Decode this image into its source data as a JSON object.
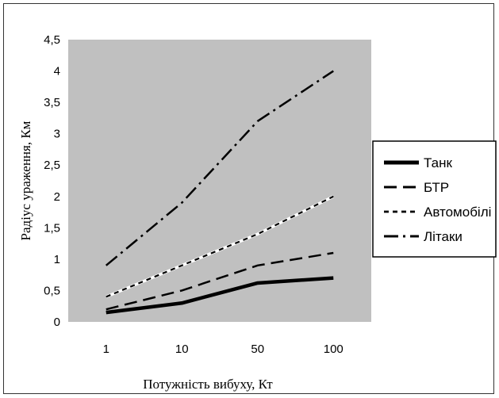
{
  "chart_data": {
    "type": "line",
    "categories": [
      "1",
      "10",
      "50",
      "100"
    ],
    "xlabel": "Потужність вибуху, Кт",
    "ylabel": "Радіус ураження, Км",
    "ylim": [
      0,
      4.5
    ],
    "y_ticks": [
      "0",
      "0,5",
      "1",
      "1,5",
      "2",
      "2,5",
      "3",
      "3,5",
      "4",
      "4,5"
    ],
    "grid": false,
    "plot_background": "#c0c0c0",
    "legend_position": "right",
    "series": [
      {
        "name": "Танк",
        "values": [
          0.15,
          0.3,
          0.62,
          0.7
        ],
        "style": "solid",
        "color": "#000000"
      },
      {
        "name": "БТР",
        "values": [
          0.2,
          0.5,
          0.9,
          1.1
        ],
        "style": "long-dash",
        "color": "#000000"
      },
      {
        "name": "Автомобілі",
        "values": [
          0.4,
          0.9,
          1.4,
          2.0
        ],
        "style": "short-dash",
        "color": "#000000"
      },
      {
        "name": "Літаки",
        "values": [
          0.9,
          1.9,
          3.2,
          4.0
        ],
        "style": "dash-dot",
        "color": "#000000"
      }
    ]
  }
}
